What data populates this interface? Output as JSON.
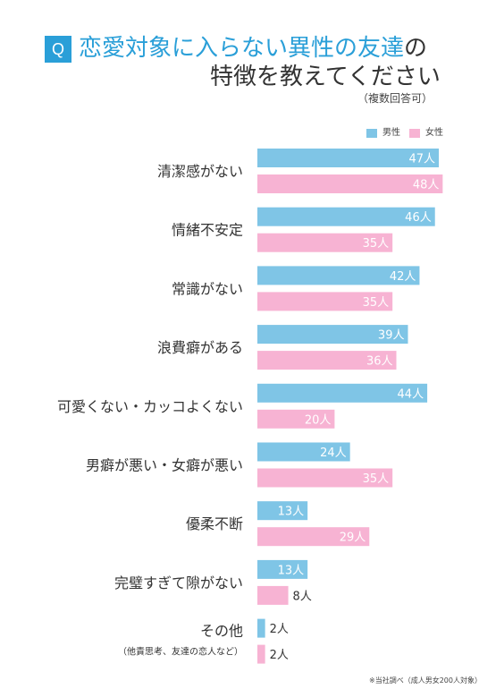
{
  "header": {
    "badge": "Q",
    "title_line1_blue": "恋愛対象に入らない異性の友達",
    "title_line1_dark": "の",
    "title_line2": "特徴を教えてください",
    "note": "（複数回答可）"
  },
  "colors": {
    "male": "#7fc5e6",
    "female": "#f7b3d3",
    "accent": "#2a9fd8",
    "text": "#333333"
  },
  "chart_data": {
    "type": "bar",
    "orientation": "horizontal",
    "unit": "人",
    "categories": [
      "清潔感がない",
      "情緒不安定",
      "常識がない",
      "浪費癖がある",
      "可愛くない・カッコよくない",
      "男癖が悪い・女癖が悪い",
      "優柔不断",
      "完璧すぎて隙がない",
      "その他"
    ],
    "category_notes": [
      "",
      "",
      "",
      "",
      "",
      "",
      "",
      "",
      "（他責思考、友達の恋人など）"
    ],
    "series": [
      {
        "name": "男性",
        "values": [
          47,
          46,
          42,
          39,
          44,
          24,
          13,
          13,
          2
        ]
      },
      {
        "name": "女性",
        "values": [
          48,
          35,
          35,
          36,
          20,
          35,
          29,
          8,
          2
        ]
      }
    ],
    "legend_position": "top-right"
  },
  "footnote": "※当社調べ（成人男女200人対象）"
}
